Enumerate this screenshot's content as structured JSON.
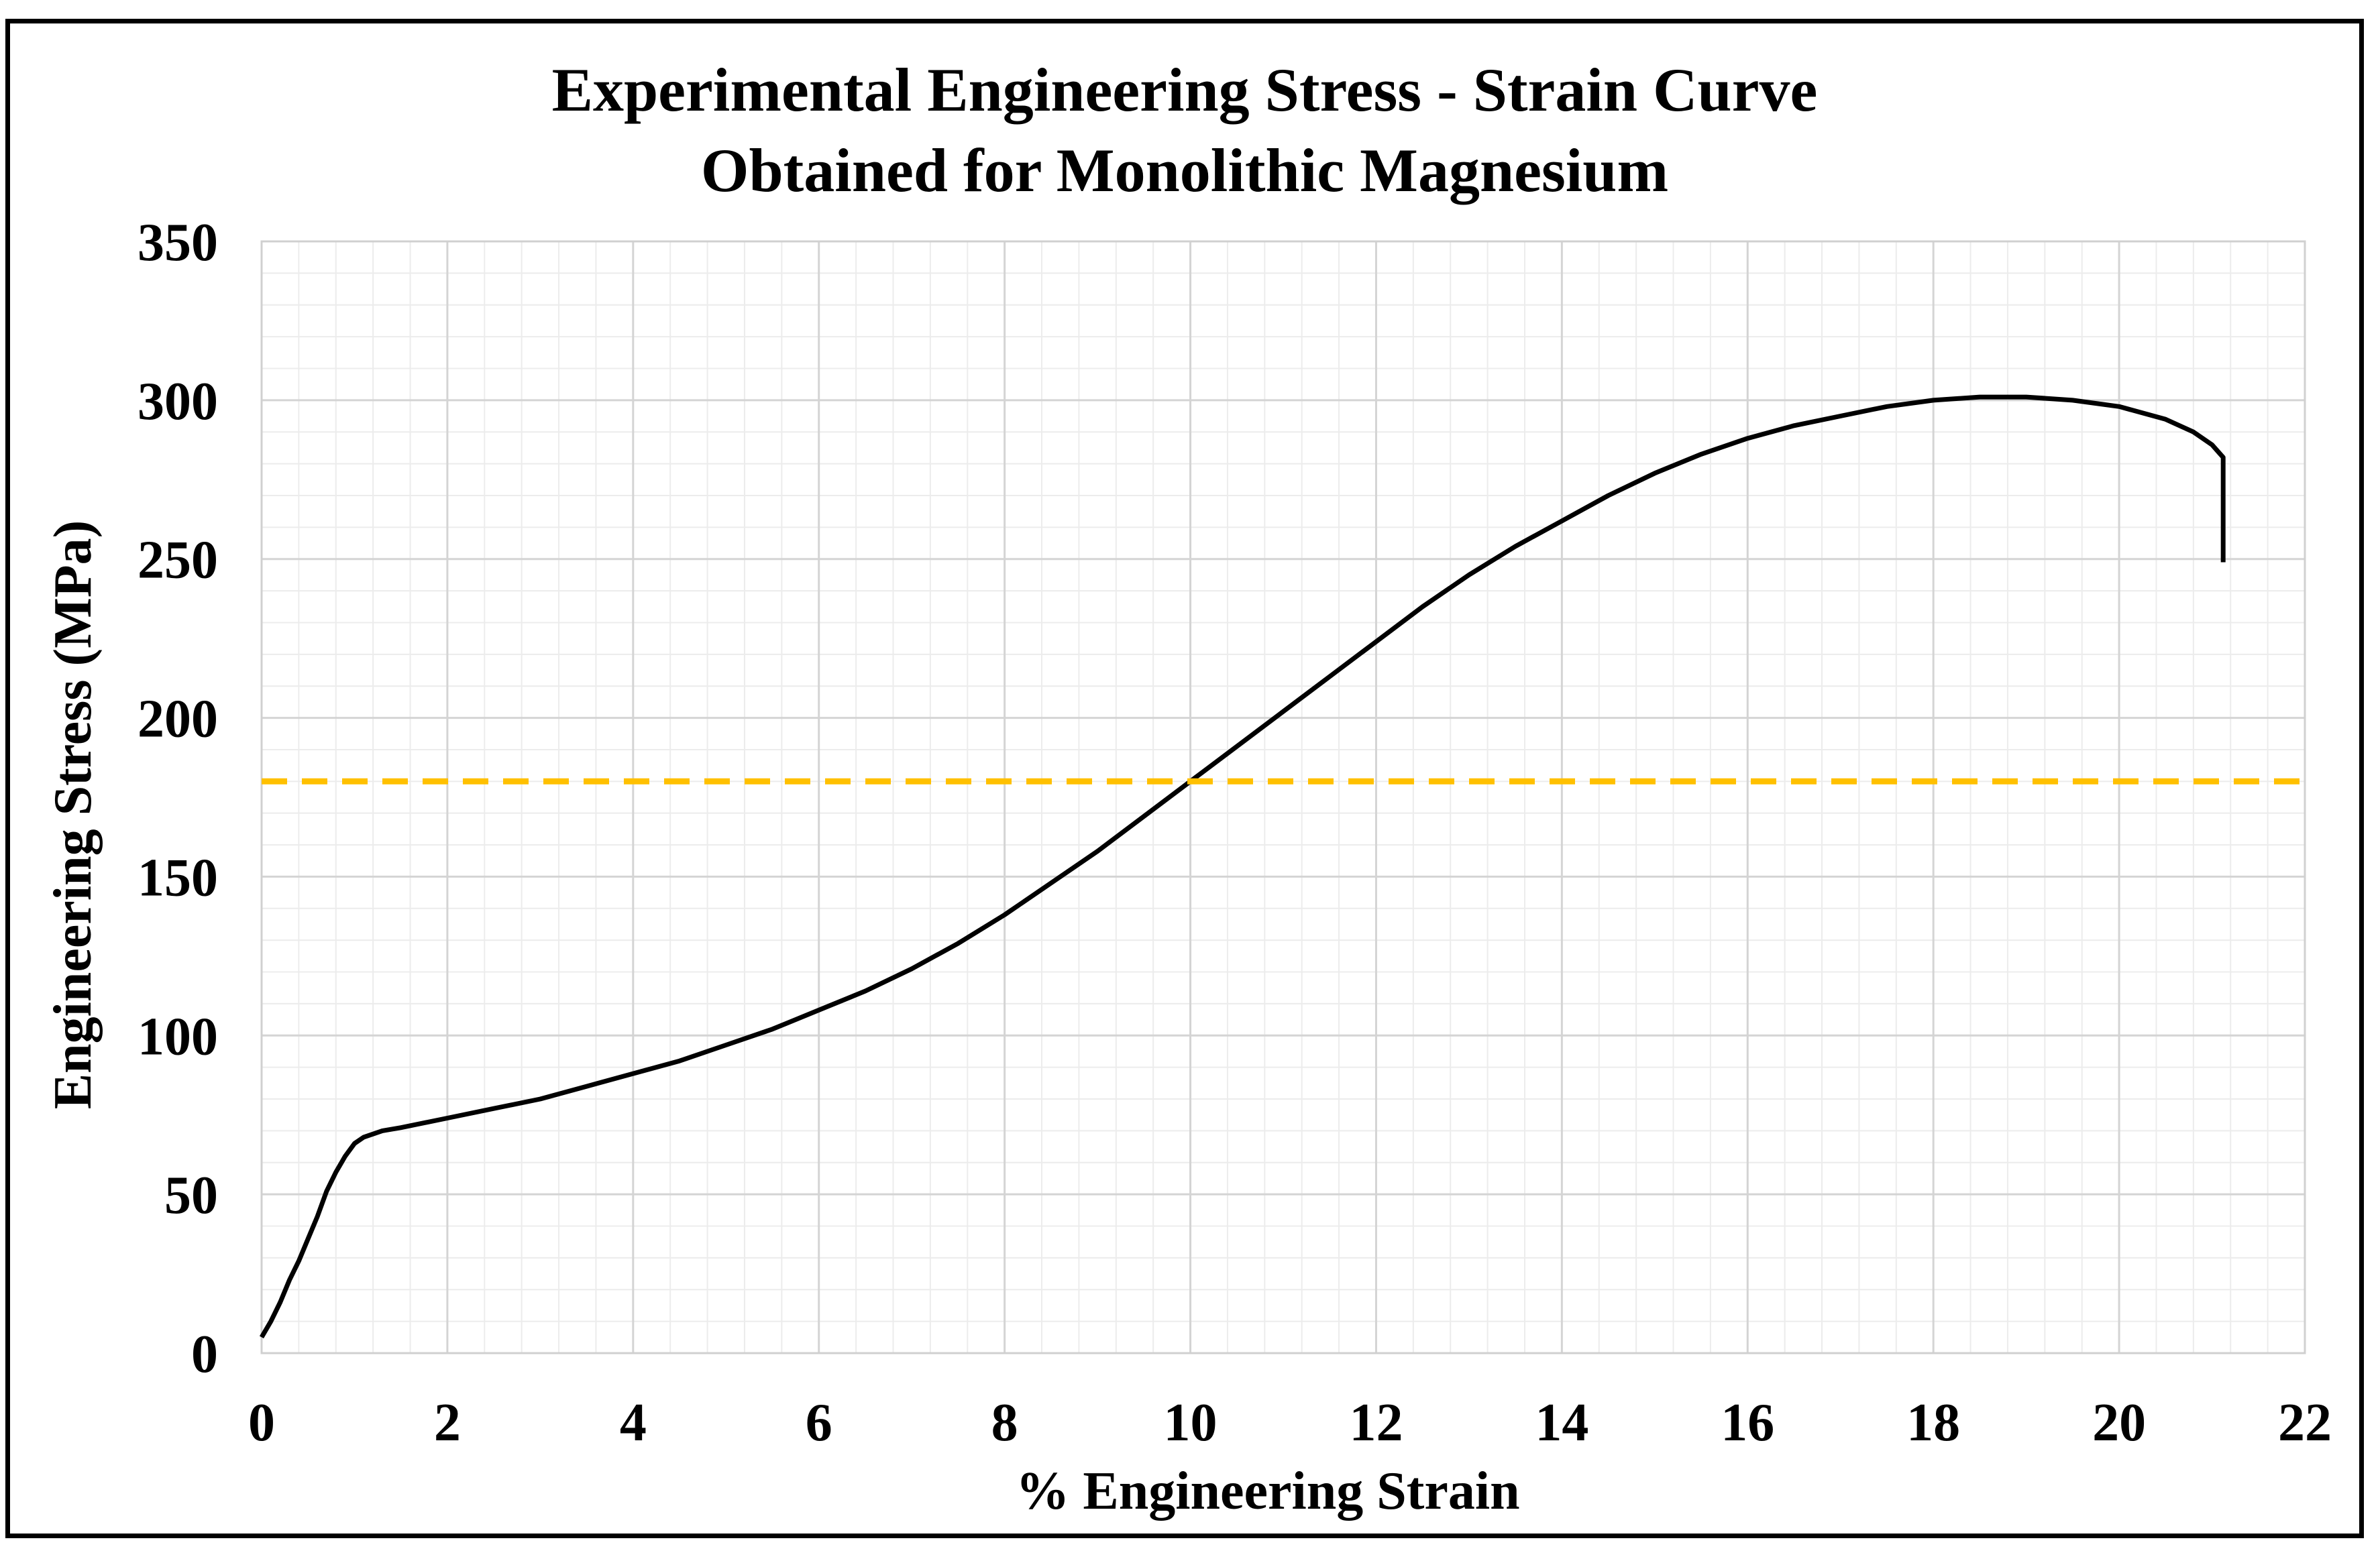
{
  "chart_data": {
    "type": "line",
    "title": [
      "Experimental Engineering Stress - Strain Curve",
      "Obtained for Monolithic Magnesium"
    ],
    "xlabel": "% Engineering Strain",
    "ylabel": "Engineering Stress (MPa)",
    "xlim": [
      0,
      22
    ],
    "ylim": [
      0,
      350
    ],
    "x_ticks": [
      0,
      2,
      4,
      6,
      8,
      10,
      12,
      14,
      16,
      18,
      20,
      22
    ],
    "y_ticks": [
      0,
      50,
      100,
      150,
      200,
      250,
      300,
      350
    ],
    "grid": "major and minor",
    "series": [
      {
        "name": "Monolithic Magnesium",
        "color": "#000000",
        "x": [
          0,
          0.1,
          0.2,
          0.3,
          0.4,
          0.5,
          0.6,
          0.7,
          0.8,
          0.9,
          1.0,
          1.1,
          1.3,
          1.5,
          2.0,
          2.5,
          3.0,
          3.5,
          4.0,
          4.5,
          5.0,
          5.5,
          6.0,
          6.5,
          7.0,
          7.5,
          8.0,
          8.5,
          9.0,
          9.5,
          10.0,
          10.5,
          11.0,
          11.5,
          12.0,
          12.5,
          13.0,
          13.5,
          14.0,
          14.5,
          15.0,
          15.5,
          16.0,
          16.5,
          17.0,
          17.5,
          18.0,
          18.5,
          19.0,
          19.5,
          20.0,
          20.5,
          20.8,
          21.0,
          21.12,
          21.12
        ],
        "y": [
          5,
          10,
          16,
          23,
          29,
          36,
          43,
          51,
          57,
          62,
          66,
          68,
          70,
          71,
          74,
          77,
          80,
          84,
          88,
          92,
          97,
          102,
          108,
          114,
          121,
          129,
          138,
          148,
          158,
          169,
          180,
          191,
          202,
          213,
          224,
          235,
          245,
          254,
          262,
          270,
          277,
          283,
          288,
          292,
          295,
          298,
          300,
          301,
          301,
          300,
          298,
          294,
          290,
          286,
          282,
          249
        ]
      },
      {
        "name": "Reference line",
        "color": "#FFC000",
        "style": "dashed",
        "x": [
          0,
          22
        ],
        "y": [
          180,
          180
        ]
      }
    ]
  }
}
